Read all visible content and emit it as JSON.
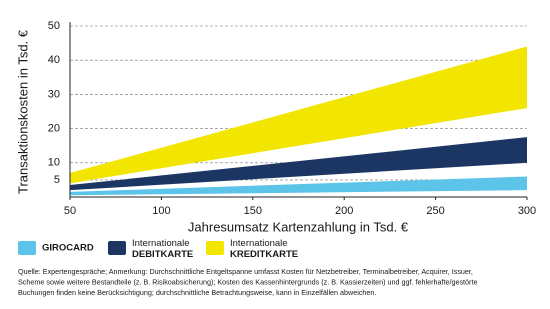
{
  "chart_data": {
    "type": "band",
    "xlabel": "Jahresumsatz Kartenzahlung in Tsd.  €",
    "ylabel": "Transaktionskosten in Tsd.  €",
    "x": [
      50,
      300
    ],
    "xlim": [
      50,
      300
    ],
    "xticks": [
      50,
      100,
      150,
      200,
      250,
      300
    ],
    "ylim": [
      0,
      50
    ],
    "yticks": [
      5,
      10,
      20,
      30,
      40,
      50
    ],
    "grid": true,
    "series": [
      {
        "name": "GIROCARD",
        "color": "#5bc4e8",
        "low": [
          0.5,
          2
        ],
        "high": [
          1.5,
          6
        ]
      },
      {
        "name": "Internationale DEBITKARTE",
        "color": "#1c3664",
        "low": [
          2,
          10
        ],
        "high": [
          3.5,
          17.5
        ]
      },
      {
        "name": "Internationale KREDITKARTE",
        "color": "#f2e500",
        "low": [
          4,
          26
        ],
        "high": [
          7,
          44
        ]
      }
    ],
    "footnote": [
      "Quelle: Expertengespräche; Anmerkung: Durchschnittliche Entgeltspanne umfasst Kosten für Netzbetreiber, Terminalbetreiber, Acquirer, Issuer,",
      "Scheme sowie weitere Bestandteile (z. B. Risikoabsicherung); Kosten des Kassenhintergrunds (z. B. Kassierzeiten) und ggf. fehlerhafte/gestörte",
      "Buchungen finden keine Berücksichtigung; durchschnittliche Betrachtungsweise, kann in Einzelfällen abweichen."
    ]
  }
}
